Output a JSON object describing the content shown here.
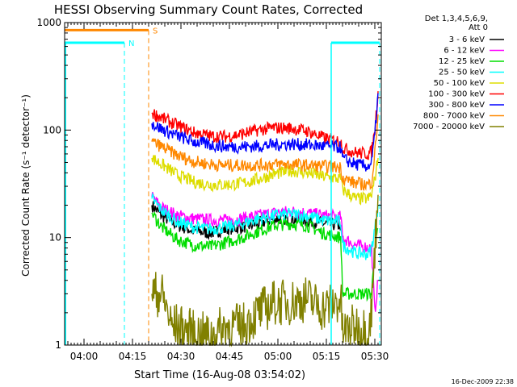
{
  "chart_data": {
    "type": "line",
    "title": "HESSI Observing Summary Count Rates, Corrected",
    "xlabel": "Start Time (16-Aug-08 03:54:02)",
    "ylabel": "Corrected Count Rate (s⁻¹ detector⁻¹)",
    "x_unit": "minutes after 03:54:02",
    "xlim": [
      0,
      98
    ],
    "ylim": [
      1,
      1000
    ],
    "yscale": "log",
    "x_ticks": [
      {
        "t": 6,
        "label": "04:00"
      },
      {
        "t": 21,
        "label": "04:15"
      },
      {
        "t": 36,
        "label": "04:30"
      },
      {
        "t": 51,
        "label": "04:45"
      },
      {
        "t": 66,
        "label": "05:00"
      },
      {
        "t": 81,
        "label": "05:15"
      },
      {
        "t": 96,
        "label": "05:30"
      }
    ],
    "y_ticks": [
      {
        "v": 1,
        "label": "1"
      },
      {
        "v": 10,
        "label": "10"
      },
      {
        "v": 100,
        "label": "100"
      },
      {
        "v": 1000,
        "label": "1000"
      }
    ],
    "legend_header": [
      "Det 1,3,4,5,6,9,",
      "Att 0"
    ],
    "legend_position": "right",
    "series": [
      {
        "name": "3 - 6 keV",
        "color": "#000000",
        "x": [
          27,
          30,
          35,
          40,
          45,
          50,
          55,
          60,
          65,
          70,
          75,
          80,
          85.5
        ],
        "values": [
          20,
          16,
          13,
          11.5,
          11,
          12,
          12.5,
          13.5,
          15,
          15,
          14.5,
          13.5,
          13
        ]
      },
      {
        "name": "6 - 12 keV",
        "color": "#ff00ff",
        "x": [
          27,
          30,
          35,
          40,
          45,
          50,
          55,
          60,
          65,
          70,
          75,
          80,
          85.5,
          86,
          90,
          95,
          96,
          97
        ],
        "values": [
          24,
          19,
          16,
          15,
          14.5,
          14.5,
          15,
          16,
          17,
          17.5,
          17,
          16,
          15.5,
          10,
          8.5,
          8,
          2,
          4
        ]
      },
      {
        "name": "12 - 25 keV",
        "color": "#00dd00",
        "x": [
          27,
          30,
          35,
          40,
          45,
          50,
          55,
          60,
          65,
          70,
          75,
          80,
          85.5,
          86,
          90,
          95,
          96,
          97
        ],
        "values": [
          17,
          12.5,
          9.5,
          8.5,
          8.2,
          9,
          10,
          11.5,
          13,
          13.5,
          13,
          11,
          10,
          3,
          3,
          3,
          8,
          12
        ]
      },
      {
        "name": "25 - 50 keV",
        "color": "#00ffff",
        "x": [
          27,
          30,
          35,
          40,
          45,
          50,
          55,
          60,
          65,
          70,
          75,
          80,
          85.5,
          86,
          90,
          94,
          95,
          96,
          97
        ],
        "values": [
          23,
          18,
          14,
          12.5,
          12,
          12.5,
          13.5,
          15,
          16,
          16.5,
          16,
          14.5,
          14,
          8.5,
          7.2,
          7,
          8,
          12,
          20
        ]
      },
      {
        "name": "50 - 100 keV",
        "color": "#dddd00",
        "x": [
          27,
          30,
          35,
          40,
          45,
          50,
          55,
          60,
          65,
          70,
          75,
          80,
          85.5,
          86,
          90,
          94,
          95,
          96,
          97
        ],
        "values": [
          55,
          48,
          38,
          33,
          31,
          31,
          32,
          35,
          39,
          42,
          40,
          37,
          35,
          28,
          23,
          23,
          25,
          35,
          55
        ]
      },
      {
        "name": "100 - 300 keV",
        "color": "#ff0000",
        "x": [
          27,
          30,
          35,
          40,
          45,
          50,
          55,
          60,
          65,
          70,
          75,
          80,
          85.5,
          86,
          90,
          94,
          95,
          96,
          97
        ],
        "values": [
          145,
          130,
          110,
          95,
          88,
          87,
          92,
          100,
          105,
          104,
          98,
          85,
          78,
          68,
          62,
          60,
          63,
          100,
          230
        ]
      },
      {
        "name": "300 - 800 keV",
        "color": "#0000ff",
        "x": [
          27,
          30,
          35,
          40,
          45,
          50,
          55,
          60,
          65,
          70,
          75,
          80,
          85.5,
          86,
          90,
          94,
          95,
          96,
          97
        ],
        "values": [
          115,
          102,
          88,
          78,
          73,
          70,
          70,
          71,
          73,
          74,
          73,
          71,
          69,
          54,
          48,
          46,
          50,
          90,
          220
        ]
      },
      {
        "name": "800 - 7000 keV",
        "color": "#ff8800",
        "x": [
          27,
          30,
          35,
          40,
          45,
          50,
          55,
          60,
          65,
          70,
          75,
          80,
          85.5,
          86,
          90,
          94,
          95,
          96,
          97
        ],
        "values": [
          78,
          70,
          58,
          51,
          48,
          47,
          47,
          47,
          48,
          48,
          47,
          46,
          45,
          36,
          32,
          31,
          33,
          60,
          140
        ]
      },
      {
        "name": "7000 - 20000 keV",
        "color": "#808000",
        "x": [
          27,
          30,
          32,
          33,
          35,
          40,
          45,
          50,
          55,
          60,
          65,
          70,
          75,
          80,
          85.5,
          86,
          90,
          94,
          95,
          96,
          97
        ],
        "values": [
          3,
          3,
          2,
          1.5,
          1.5,
          1.3,
          1.2,
          1.5,
          1.5,
          2,
          2.5,
          2.5,
          2.7,
          2.2,
          2.6,
          1.3,
          1.5,
          1.4,
          2,
          8,
          25
        ]
      }
    ],
    "annotations": [
      {
        "label": "N",
        "color": "#00ffff",
        "t": 18.5
      },
      {
        "label": "S",
        "color": "#ff8800",
        "t": 26
      }
    ],
    "footer": "16-Dec-2009 22:38"
  }
}
